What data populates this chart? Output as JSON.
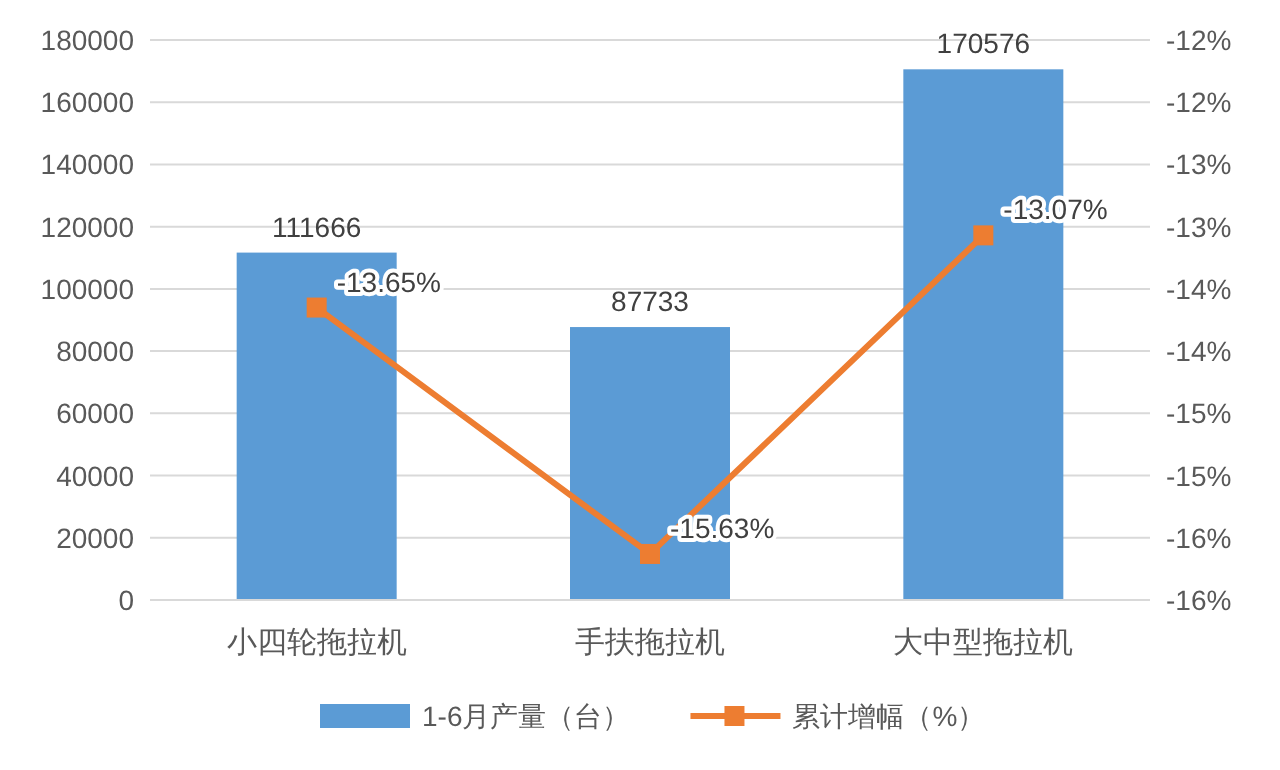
{
  "chart_data": {
    "type": "bar",
    "categories": [
      "小四轮拖拉机",
      "手扶拖拉机",
      "大中型拖拉机"
    ],
    "series": [
      {
        "name": "1-6月产量（台）",
        "color": "#5b9bd5",
        "values": [
          111666,
          87733,
          170576
        ],
        "value_labels": [
          "111666",
          "87733",
          "170576"
        ]
      },
      {
        "name": "累计增幅（%）",
        "type": "line",
        "axis": "y2",
        "color": "#ed7d31",
        "values": [
          -13.65,
          -15.63,
          -13.07
        ],
        "value_labels": [
          "-13.65%",
          "-15.63%",
          "-13.07%"
        ]
      }
    ],
    "ylim": [
      0,
      180000
    ],
    "yticks": [
      0,
      20000,
      40000,
      60000,
      80000,
      100000,
      120000,
      140000,
      160000,
      180000
    ],
    "y2lim": [
      -16,
      -11.5
    ],
    "y2ticks": [
      {
        "value": -16,
        "label": "-16%"
      },
      {
        "value": -15.5,
        "label": "-16%"
      },
      {
        "value": -15,
        "label": "-15%"
      },
      {
        "value": -14.5,
        "label": "-15%"
      },
      {
        "value": -14,
        "label": "-14%"
      },
      {
        "value": -13.5,
        "label": "-14%"
      },
      {
        "value": -13,
        "label": "-13%"
      },
      {
        "value": -12.5,
        "label": "-13%"
      },
      {
        "value": -12,
        "label": "-12%"
      },
      {
        "value": -11.5,
        "label": "-12%"
      }
    ],
    "grid": "y",
    "legend": "bottom",
    "marker": "square",
    "line_style": "solid"
  }
}
